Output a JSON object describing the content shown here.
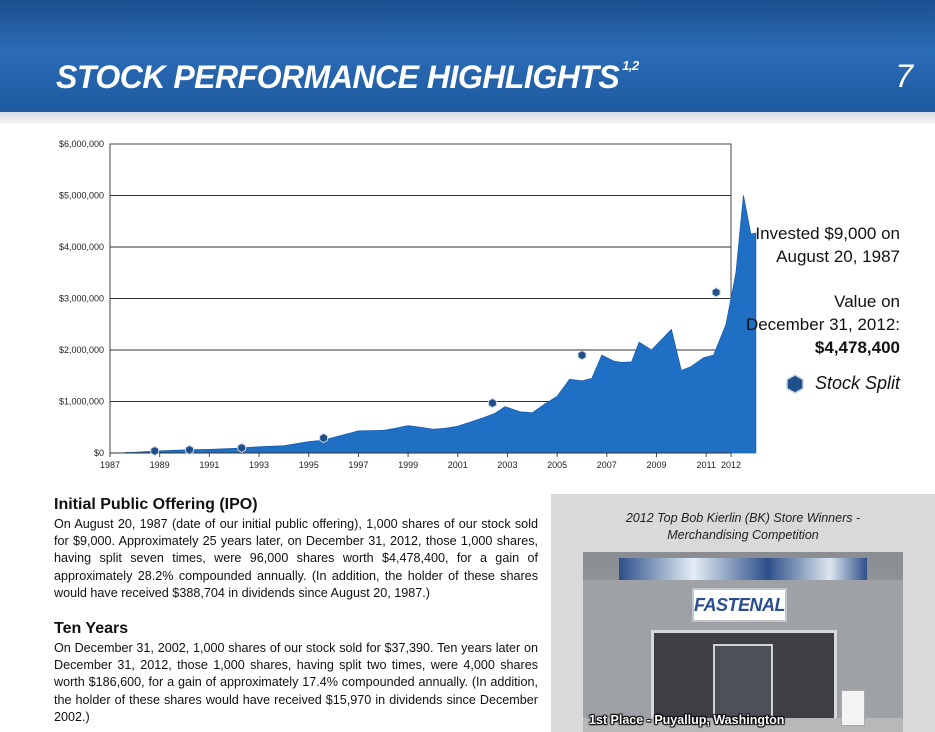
{
  "header": {
    "title": "STOCK PERFORMANCE HIGHLIGHTS",
    "footnote_marks": "1,2",
    "page_number": "7",
    "colors": {
      "banner": "#2b6cb6"
    }
  },
  "chart_data": {
    "type": "area",
    "xlabel": "",
    "ylabel": "",
    "x_tick_labels": [
      "1987",
      "1989",
      "1991",
      "1993",
      "1995",
      "1997",
      "1999",
      "2001",
      "2003",
      "2005",
      "2007",
      "2009",
      "2011",
      "2012"
    ],
    "y_tick_labels": [
      "$0",
      "$1,000,000",
      "$2,000,000",
      "$3,000,000",
      "$4,000,000",
      "$5,000,000",
      "$6,000,000"
    ],
    "xlim": [
      1987,
      2013
    ],
    "ylim": [
      0,
      6000000
    ],
    "grid": true,
    "fill_color": "#1f6fc4",
    "series": [
      {
        "x": [
          1987.6,
          1988.0,
          1989.0,
          1990.0,
          1991.0,
          1992.0,
          1993.0,
          1994.0,
          1995.0,
          1995.6,
          1996.0,
          1997.0,
          1998.0,
          1998.5,
          1999.0,
          1999.5,
          2000.0,
          2000.5,
          2001.0,
          2001.5,
          2002.0,
          2002.5,
          2002.9,
          2003.5,
          2004.0,
          2004.5,
          2005.0,
          2005.5,
          2006.0,
          2006.4,
          2006.8,
          2007.3,
          2007.6,
          2008.0,
          2008.3,
          2008.8,
          2009.0,
          2009.6,
          2010.0,
          2010.4,
          2010.9,
          2011.3,
          2011.8,
          2012.0,
          2012.2,
          2012.5,
          2012.8,
          2013.0
        ],
        "y": [
          9000,
          15000,
          40000,
          60000,
          70000,
          90000,
          120000,
          140000,
          220000,
          250000,
          300000,
          430000,
          440000,
          480000,
          530000,
          500000,
          460000,
          480000,
          520000,
          600000,
          680000,
          770000,
          900000,
          800000,
          780000,
          950000,
          1100000,
          1430000,
          1400000,
          1450000,
          1900000,
          1780000,
          1760000,
          1770000,
          2150000,
          2000000,
          2100000,
          2400000,
          1600000,
          1680000,
          1850000,
          1900000,
          2500000,
          3000000,
          3500000,
          5000000,
          4250000,
          4270000
        ]
      }
    ],
    "stock_splits_x": [
      1988.8,
      1990.2,
      1992.3,
      1995.6,
      2002.4,
      2006.0,
      2011.4
    ],
    "stock_splits_y": [
      40000,
      60000,
      100000,
      290000,
      970000,
      1900000,
      3120000
    ]
  },
  "sidebar": {
    "invested_line1": "Invested $9,000 on",
    "invested_line2": "August 20, 1987",
    "value_line1": "Value on",
    "value_line2": "December 31, 2012:",
    "value_amount": "$4,478,400",
    "legend_label": "Stock Split",
    "legend_color": "#1e4f8a"
  },
  "ipo": {
    "heading": "Initial Public Offering (IPO)",
    "body": "On August 20, 1987 (date of our initial public offering), 1,000 shares of our stock sold for $9,000. Approximately 25 years later, on December 31, 2012, those 1,000 shares, having split seven times, were 96,000 shares worth $4,478,400, for a gain of approximately 28.2% compounded annually. (In addition, the holder of these shares would have received $388,704 in dividends since August 20, 1987.)"
  },
  "ten_years": {
    "heading": "Ten Years",
    "body": "On December 31, 2002, 1,000 shares of our stock sold for $37,390. Ten years later on December 31, 2012, those 1,000 shares, having split two times, were 4,000 shares worth $186,600, for a gain of approximately 17.4% compounded annually. (In addition, the holder of these shares would have received $15,970 in dividends since December 2002.)"
  },
  "photo": {
    "caption_line1": "2012 Top Bob Kierlin (BK) Store Winners -",
    "caption_line2": "Merchandising Competition",
    "store_sign": "FASTENAL",
    "overlay": "1st Place - Puyallup, Washington"
  }
}
